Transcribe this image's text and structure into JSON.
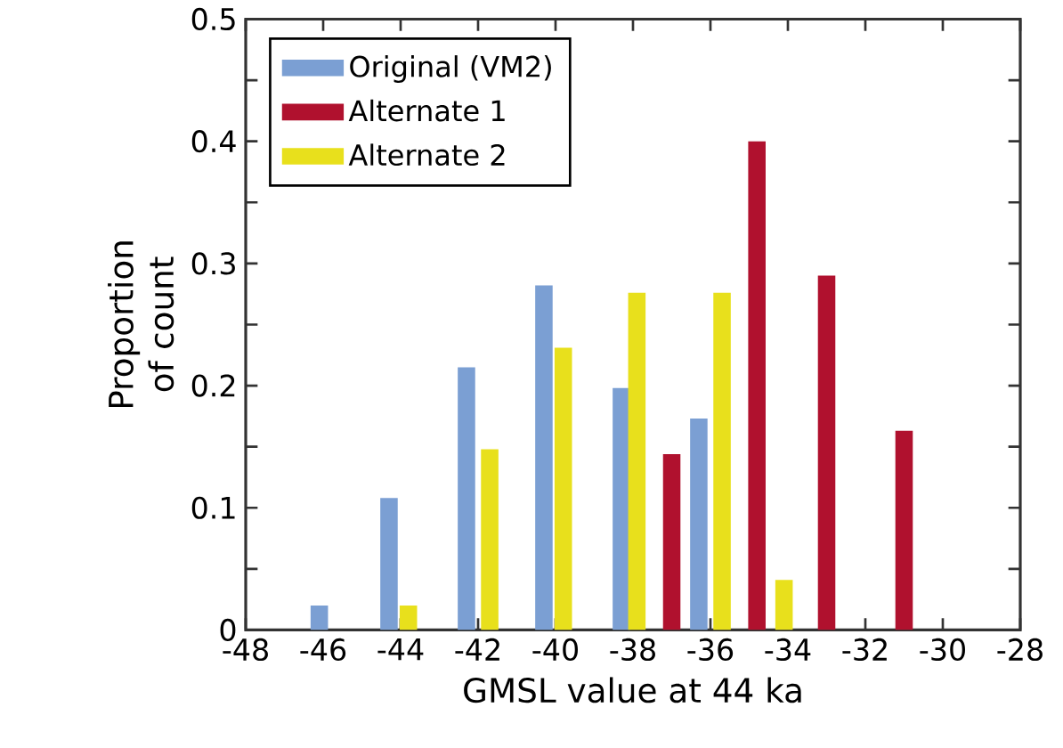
{
  "chart_data": {
    "type": "bar",
    "xlabel": "GMSL value at 44 ka",
    "ylabel": "Proportion of count",
    "series": [
      {
        "name": "Original (VM2)",
        "color": "#7b9fd3",
        "x": [
          -46.1,
          -44.3,
          -42.3,
          -40.3,
          -38.3,
          -36.3
        ],
        "values": [
          0.02,
          0.108,
          0.215,
          0.282,
          0.198,
          0.173
        ]
      },
      {
        "name": "Alternate 1",
        "color": "#b0112e",
        "x": [
          -37.0,
          -34.8,
          -33.0,
          -31.0
        ],
        "values": [
          0.144,
          0.4,
          0.29,
          0.163
        ]
      },
      {
        "name": "Alternate 2",
        "color": "#e8e01c",
        "x": [
          -43.8,
          -41.7,
          -39.8,
          -37.9,
          -35.7,
          -34.1
        ],
        "values": [
          0.02,
          0.148,
          0.231,
          0.276,
          0.276,
          0.041
        ]
      }
    ],
    "xlim": [
      -48,
      -28
    ],
    "xticks": [
      -48,
      -46,
      -44,
      -42,
      -40,
      -38,
      -36,
      -34,
      -32,
      -30,
      -28
    ],
    "ylim": [
      0,
      0.5
    ],
    "yticks": [
      0,
      {
        "value": 0.05,
        "label": null
      },
      0.1,
      {
        "value": 0.15,
        "label": null
      },
      0.2,
      {
        "value": 0.25,
        "label": null
      },
      0.3,
      {
        "value": 0.35,
        "label": null
      },
      0.4,
      {
        "value": 0.45,
        "label": null
      },
      0.5
    ],
    "legend": "top left",
    "grid": false
  }
}
